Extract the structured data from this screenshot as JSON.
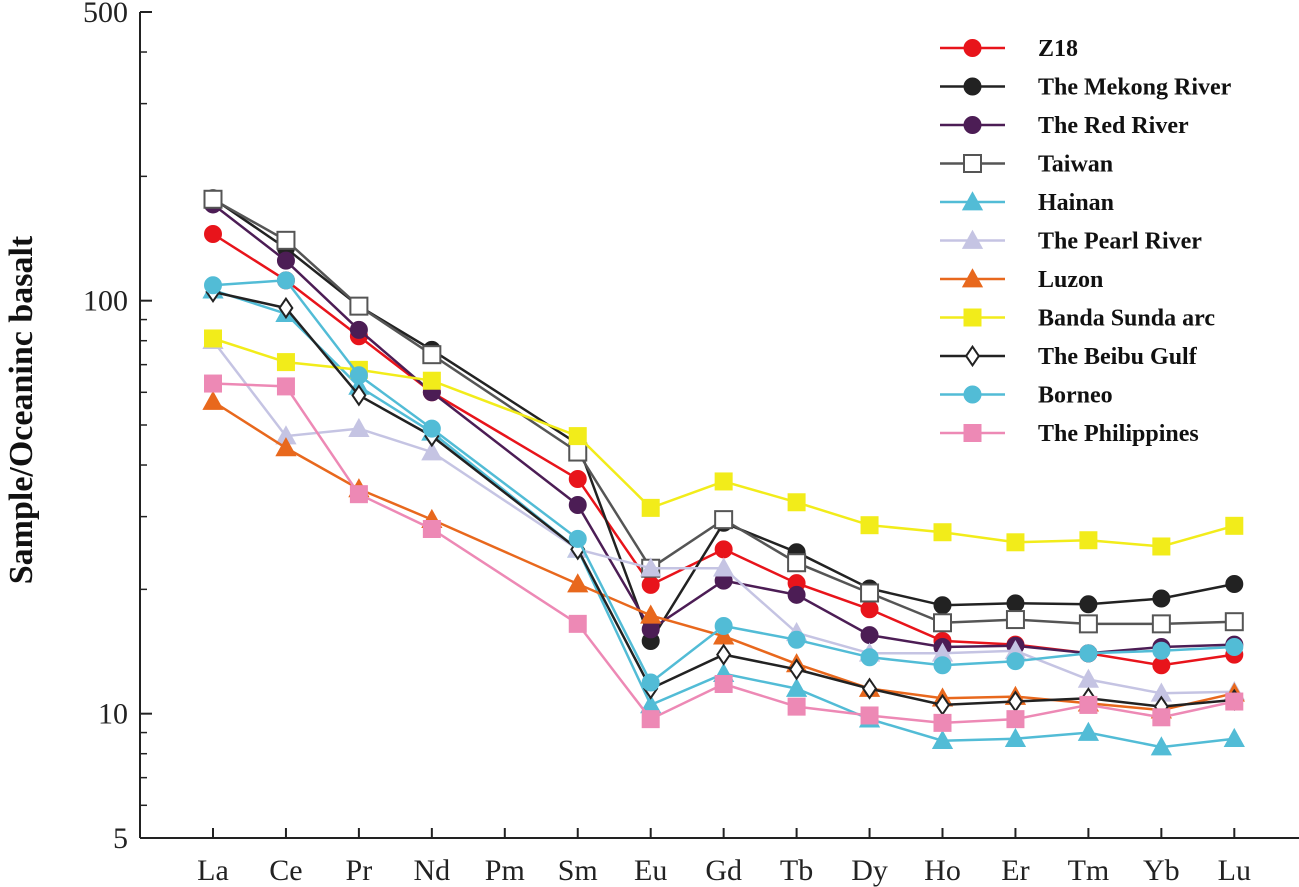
{
  "chart_data": {
    "type": "line",
    "title": "",
    "xlabel": "",
    "ylabel": "Sample/Oceaninc basalt",
    "yscale": "log",
    "ylim": [
      5,
      500
    ],
    "yticks": [
      {
        "value": 5,
        "label": "5"
      },
      {
        "value": 10,
        "label": "10"
      },
      {
        "value": 100,
        "label": "100"
      },
      {
        "value": 500,
        "label": "500"
      }
    ],
    "categories": [
      "La",
      "Ce",
      "Pr",
      "Nd",
      "Pm",
      "Sm",
      "Eu",
      "Gd",
      "Tb",
      "Dy",
      "Ho",
      "Er",
      "Tm",
      "Yb",
      "Lu"
    ],
    "legend_position": "top-right",
    "series": [
      {
        "name": "Z18",
        "color": "#e8141b",
        "marker": "circle",
        "filled": true,
        "values": [
          145,
          112,
          82,
          60,
          null,
          37,
          20.5,
          25,
          20.7,
          17.9,
          15,
          14.7,
          14,
          13.1,
          13.9
        ]
      },
      {
        "name": "The Mekong River",
        "color": "#222222",
        "marker": "circle",
        "filled": true,
        "values": [
          177,
          134,
          97,
          76,
          null,
          45,
          15,
          29,
          24.6,
          20.1,
          18.3,
          18.5,
          18.4,
          19,
          20.6
        ]
      },
      {
        "name": "The Red River",
        "color": "#4c1d55",
        "marker": "circle",
        "filled": true,
        "values": [
          171,
          125,
          85,
          60,
          null,
          32,
          16,
          21,
          19.4,
          15.5,
          14.5,
          14.6,
          14,
          14.5,
          14.7
        ]
      },
      {
        "name": "Taiwan",
        "color": "#555555",
        "marker": "square",
        "filled": false,
        "values": [
          176,
          140,
          97,
          74,
          null,
          43,
          22.5,
          29.5,
          23.2,
          19.6,
          16.6,
          16.9,
          16.5,
          16.5,
          16.7
        ]
      },
      {
        "name": "Hainan",
        "color": "#52bcd6",
        "marker": "triangle",
        "filled": true,
        "values": [
          106,
          93,
          62,
          48,
          null,
          25,
          10.5,
          12.5,
          11.5,
          9.7,
          8.6,
          8.7,
          9,
          8.3,
          8.7
        ]
      },
      {
        "name": "The Pearl River",
        "color": "#c5c4e3",
        "marker": "triangle",
        "filled": true,
        "values": [
          80,
          47,
          49,
          43,
          null,
          25,
          22.5,
          22.5,
          15.7,
          14,
          14,
          14.2,
          12.1,
          11.2,
          11.3
        ]
      },
      {
        "name": "Luzon",
        "color": "#e8681d",
        "marker": "triangle",
        "filled": true,
        "values": [
          57,
          44,
          35,
          29.5,
          null,
          20.6,
          17.3,
          15.4,
          13.2,
          11.5,
          10.9,
          11,
          10.6,
          10.2,
          11.2
        ]
      },
      {
        "name": "Banda Sunda arc",
        "color": "#f2ec1a",
        "marker": "square",
        "filled": true,
        "values": [
          81,
          71,
          68,
          64,
          null,
          47,
          31.5,
          36.5,
          32.5,
          28.6,
          27.5,
          26,
          26.3,
          25.4,
          28.5
        ]
      },
      {
        "name": "The Beibu Gulf",
        "color": "#222222",
        "marker": "diamond",
        "filled": false,
        "values": [
          105,
          96,
          59,
          47,
          null,
          25,
          11.5,
          13.9,
          12.8,
          11.5,
          10.5,
          10.7,
          10.9,
          10.4,
          10.8
        ]
      },
      {
        "name": "Borneo",
        "color": "#52bcd6",
        "marker": "circle",
        "filled": true,
        "values": [
          109,
          112,
          66,
          49,
          null,
          26.5,
          11.9,
          16.3,
          15.1,
          13.7,
          13.1,
          13.4,
          14,
          14.2,
          14.5
        ]
      },
      {
        "name": "The Philippines",
        "color": "#ed89b5",
        "marker": "square",
        "filled": true,
        "values": [
          63,
          62,
          34,
          28,
          null,
          16.5,
          9.7,
          11.8,
          10.4,
          9.9,
          9.5,
          9.7,
          10.5,
          9.8,
          10.7
        ]
      }
    ]
  }
}
